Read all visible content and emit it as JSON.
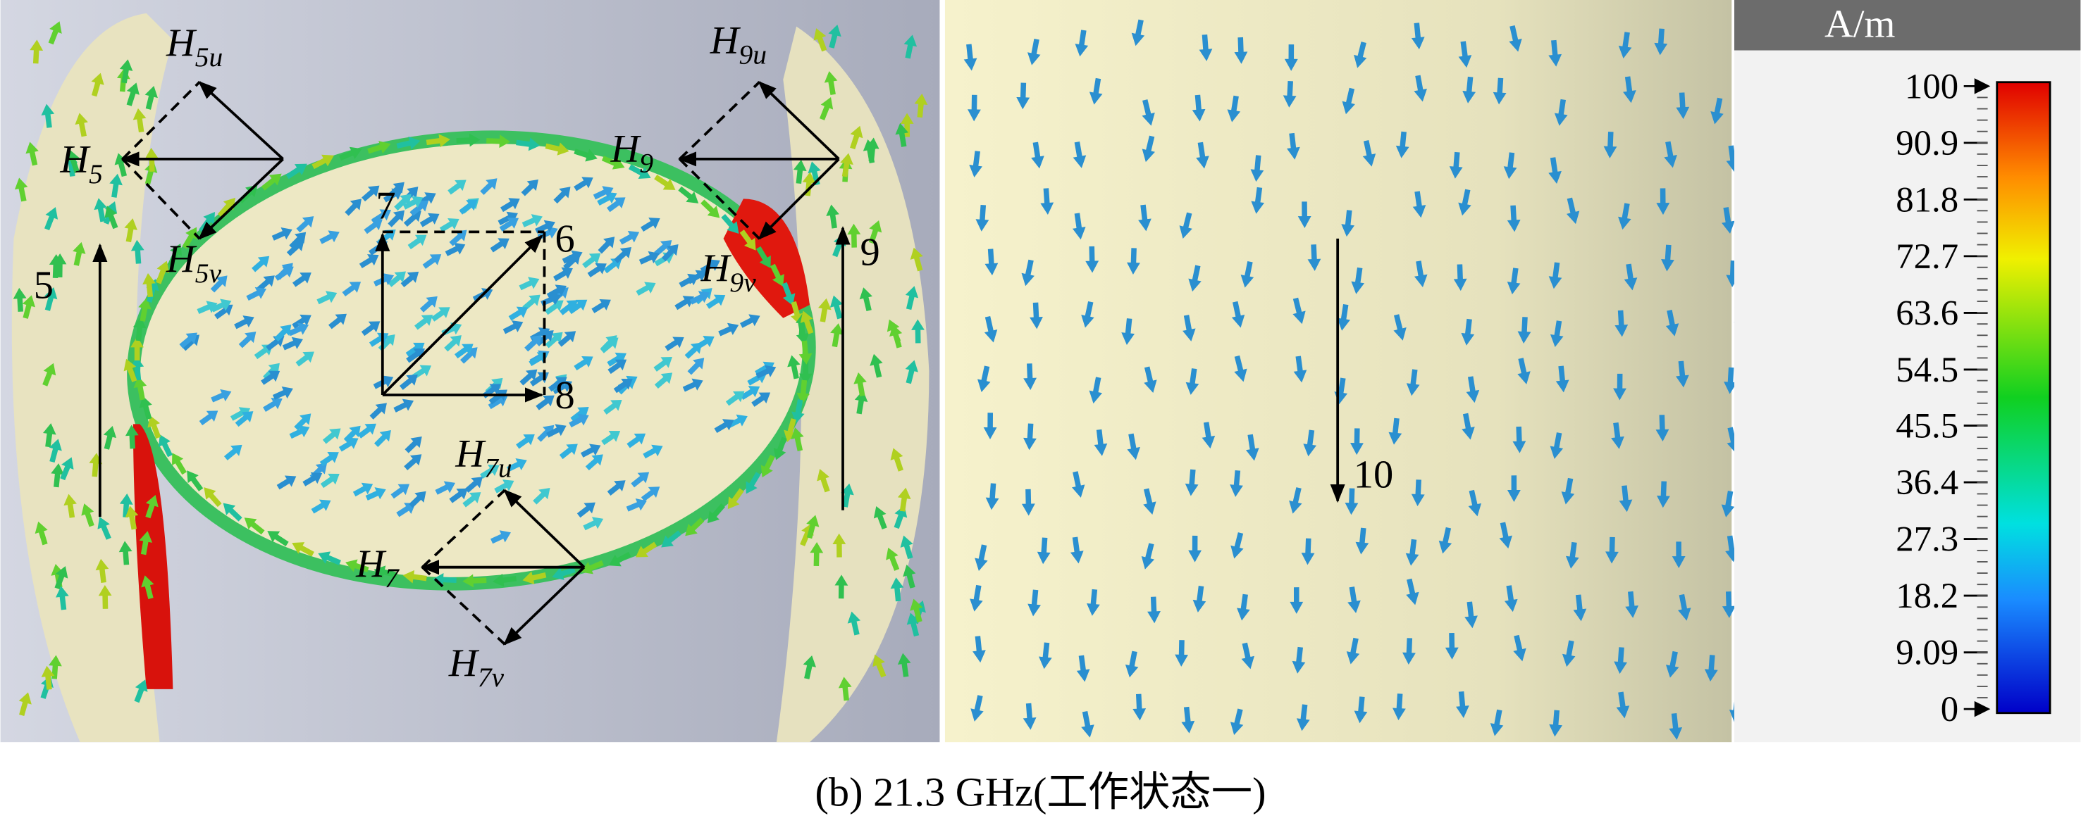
{
  "field_labels": [
    {
      "main": "H",
      "sub": "5u"
    },
    {
      "main": "H",
      "sub": "5"
    },
    {
      "main": "H",
      "sub": "5v"
    },
    {
      "main": "H",
      "sub": "9u"
    },
    {
      "main": "H",
      "sub": "9"
    },
    {
      "main": "H",
      "sub": "9v"
    },
    {
      "main": "H",
      "sub": "7u"
    },
    {
      "main": "H",
      "sub": "7"
    },
    {
      "main": "H",
      "sub": "7v"
    }
  ],
  "point_labels": [
    "5",
    "6",
    "7",
    "8",
    "9",
    "10"
  ],
  "colorbar": {
    "unit": "A/m",
    "lim": [
      0,
      100
    ],
    "ticks": [
      100,
      90.9,
      81.8,
      72.7,
      63.6,
      54.5,
      45.5,
      36.4,
      27.3,
      18.2,
      9.09,
      0
    ]
  },
  "caption": "(b) 21.3 GHz(工作状态一)"
}
